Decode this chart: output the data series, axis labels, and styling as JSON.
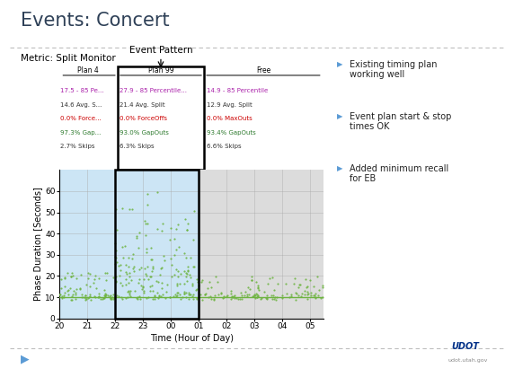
{
  "title": "Events: Concert",
  "metric_label": "Metric: Split Monitor",
  "event_pattern_label": "Event Pattern",
  "xlabel": "Time (Hour of Day)",
  "ylabel": "Phase Duration [Seconds]",
  "xtick_labels": [
    "20",
    "21",
    "22",
    "23",
    "00",
    "01",
    "02",
    "03",
    "04",
    "05"
  ],
  "ylim": [
    0,
    70
  ],
  "yticks": [
    0,
    10,
    20,
    30,
    40,
    50,
    60
  ],
  "bg_color_plan4": "#cce5f5",
  "bg_color_plan99": "#cce5f5",
  "bg_color_free": "#dcdcdc",
  "grid_color": "#aaaaaa",
  "dot_color": "#6db33f",
  "hline_color": "#6db33f",
  "bullet_color": "#5b9bd5",
  "title_color": "#2e4057",
  "plan4_stats": [
    {
      "text": "17.5 - 85 Pe...",
      "color": "#aa22aa"
    },
    {
      "text": "14.6 Avg. S...",
      "color": "#333333"
    },
    {
      "text": "0.0% Force...",
      "color": "#cc0000"
    },
    {
      "text": "97.3% Gap...",
      "color": "#2d7a2d"
    },
    {
      "text": "2.7% Skips",
      "color": "#333333"
    }
  ],
  "plan99_stats": [
    {
      "text": "27.9 - 85 Percentile...",
      "color": "#aa22aa"
    },
    {
      "text": "21.4 Avg. Split",
      "color": "#333333"
    },
    {
      "text": "0.0% ForceOffs",
      "color": "#cc0000"
    },
    {
      "text": "93.0% GapOuts",
      "color": "#2d7a2d"
    },
    {
      "text": "6.3% Skips",
      "color": "#333333"
    }
  ],
  "free_stats": [
    {
      "text": "14.9 - 85 Percentile",
      "color": "#aa22aa"
    },
    {
      "text": "12.9 Avg. Split",
      "color": "#333333"
    },
    {
      "text": "0.0% MaxOuts",
      "color": "#cc0000"
    },
    {
      "text": "93.4% GapOuts",
      "color": "#2d7a2d"
    },
    {
      "text": "6.6% Skips",
      "color": "#333333"
    }
  ],
  "bullet_points": [
    "Existing timing plan\nworking well",
    "Event plan start & stop\ntimes OK",
    "Added minimum recall\nfor EB"
  ]
}
